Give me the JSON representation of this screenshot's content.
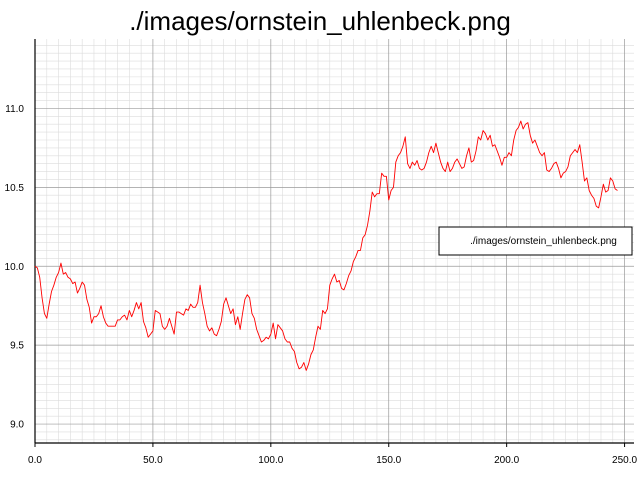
{
  "chart_data": {
    "type": "line",
    "title": "./images/ornstein_uhlenbeck.png",
    "xlabel": "",
    "ylabel": "",
    "xlim": [
      0,
      254
    ],
    "ylim": [
      8.88,
      11.44
    ],
    "x_ticks": [
      0,
      50,
      100,
      150,
      200,
      250
    ],
    "x_tick_labels": [
      "0.0",
      "50.0",
      "100.0",
      "150.0",
      "200.0",
      "250.0"
    ],
    "y_ticks": [
      9.0,
      9.5,
      10.0,
      10.5,
      11.0
    ],
    "y_tick_labels": [
      "9.0",
      "9.5",
      "10.0",
      "10.5",
      "11.0"
    ],
    "grid": true,
    "legend": "right",
    "series": [
      {
        "name": "./images/ornstein_uhlenbeck.png",
        "color": "#ff0000",
        "x_start": 0,
        "x_step": 1,
        "values": [
          10.0,
          9.99,
          9.93,
          9.8,
          9.7,
          9.67,
          9.76,
          9.84,
          9.88,
          9.93,
          9.96,
          10.02,
          9.95,
          9.96,
          9.93,
          9.92,
          9.89,
          9.9,
          9.83,
          9.86,
          9.9,
          9.88,
          9.79,
          9.74,
          9.64,
          9.68,
          9.68,
          9.7,
          9.75,
          9.68,
          9.64,
          9.62,
          9.62,
          9.62,
          9.62,
          9.66,
          9.66,
          9.68,
          9.69,
          9.66,
          9.72,
          9.68,
          9.72,
          9.77,
          9.73,
          9.77,
          9.65,
          9.61,
          9.55,
          9.57,
          9.59,
          9.72,
          9.71,
          9.7,
          9.62,
          9.6,
          9.62,
          9.67,
          9.62,
          9.57,
          9.71,
          9.71,
          9.7,
          9.69,
          9.73,
          9.72,
          9.76,
          9.74,
          9.74,
          9.77,
          9.88,
          9.77,
          9.7,
          9.62,
          9.59,
          9.61,
          9.57,
          9.56,
          9.6,
          9.65,
          9.76,
          9.8,
          9.75,
          9.7,
          9.73,
          9.63,
          9.68,
          9.6,
          9.7,
          9.79,
          9.82,
          9.8,
          9.7,
          9.67,
          9.6,
          9.56,
          9.52,
          9.53,
          9.55,
          9.54,
          9.57,
          9.64,
          9.54,
          9.63,
          9.61,
          9.59,
          9.54,
          9.52,
          9.52,
          9.48,
          9.46,
          9.39,
          9.35,
          9.36,
          9.39,
          9.34,
          9.38,
          9.44,
          9.47,
          9.55,
          9.62,
          9.6,
          9.72,
          9.7,
          9.73,
          9.88,
          9.92,
          9.95,
          9.9,
          9.91,
          9.86,
          9.85,
          9.89,
          9.94,
          9.97,
          10.03,
          10.06,
          10.1,
          10.1,
          10.18,
          10.2,
          10.26,
          10.35,
          10.47,
          10.44,
          10.46,
          10.46,
          10.59,
          10.57,
          10.57,
          10.42,
          10.48,
          10.5,
          10.66,
          10.7,
          10.72,
          10.76,
          10.82,
          10.65,
          10.62,
          10.66,
          10.64,
          10.67,
          10.62,
          10.61,
          10.62,
          10.66,
          10.72,
          10.76,
          10.72,
          10.78,
          10.72,
          10.66,
          10.62,
          10.6,
          10.66,
          10.6,
          10.62,
          10.66,
          10.68,
          10.65,
          10.62,
          10.63,
          10.7,
          10.75,
          10.66,
          10.67,
          10.73,
          10.82,
          10.8,
          10.86,
          10.84,
          10.8,
          10.83,
          10.76,
          10.77,
          10.73,
          10.69,
          10.64,
          10.69,
          10.69,
          10.72,
          10.7,
          10.8,
          10.86,
          10.88,
          10.92,
          10.87,
          10.9,
          10.91,
          10.83,
          10.78,
          10.8,
          10.76,
          10.72,
          10.7,
          10.72,
          10.61,
          10.6,
          10.62,
          10.65,
          10.66,
          10.62,
          10.56,
          10.59,
          10.6,
          10.63,
          10.7,
          10.72,
          10.74,
          10.72,
          10.77,
          10.66,
          10.54,
          10.56,
          10.48,
          10.45,
          10.43,
          10.38,
          10.37,
          10.44,
          10.52,
          10.47,
          10.48,
          10.56,
          10.54,
          10.49,
          10.48
        ]
      }
    ]
  }
}
